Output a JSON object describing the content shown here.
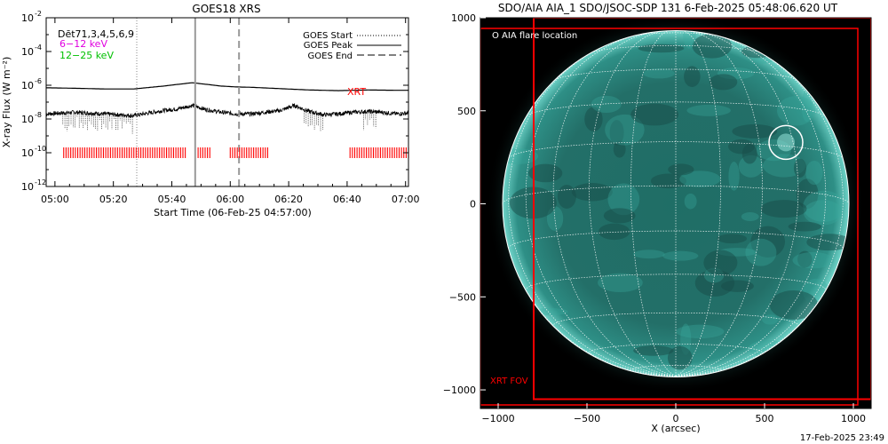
{
  "footer_timestamp": "17-Feb-2025 23:49",
  "colors": {
    "xrt": "#ff0000",
    "band_6_12": "#e000e0",
    "band_12_25": "#00c000",
    "sun_teal": "#2fa89c",
    "grid": "#ffffff"
  },
  "chart_data": [
    {
      "type": "line",
      "title": "GOES18 XRS",
      "xlabel": "Start Time (06-Feb-25 04:57:00)",
      "ylabel": "X-ray Flux (W m⁻²)",
      "ylim_exponent": [
        -12,
        -2
      ],
      "y_log_scale": true,
      "y_ticks": [
        {
          "base": "10",
          "exp": "-2",
          "e": -2
        },
        {
          "base": "10",
          "exp": "-4",
          "e": -4
        },
        {
          "base": "10",
          "exp": "-6",
          "e": -6
        },
        {
          "base": "10",
          "exp": "-8",
          "e": -8
        },
        {
          "base": "10",
          "exp": "-10",
          "e": -10
        },
        {
          "base": "10",
          "exp": "-12",
          "e": -12
        }
      ],
      "x_ticks": [
        "05:00",
        "05:20",
        "05:40",
        "06:00",
        "06:20",
        "06:40",
        "07:00"
      ],
      "x_tick_minutes": [
        3,
        23,
        43,
        63,
        83,
        103,
        123
      ],
      "xlim_minutes": [
        0,
        124
      ],
      "top_left_labels": [
        {
          "text": "Dēt71,3,4,5,6,9",
          "color": "#000000"
        },
        {
          "text": "6−12 keV",
          "color": "#e000e0"
        },
        {
          "text": "12−25 keV",
          "color": "#00c000"
        }
      ],
      "legend": [
        {
          "label": "GOES Start",
          "style": "dotted"
        },
        {
          "label": "GOES Peak",
          "style": "solid"
        },
        {
          "label": "GOES End",
          "style": "dashed"
        }
      ],
      "legend_position": "top-right",
      "xrt_label": "XRT",
      "events_minutes": {
        "start": 31,
        "peak": 51,
        "end": 66
      },
      "series": [
        {
          "name": "long",
          "x": [
            0,
            10,
            20,
            30,
            40,
            45,
            50,
            55,
            60,
            65,
            70,
            80,
            90,
            100,
            110,
            120,
            124
          ],
          "log_flux": [
            -6.15,
            -6.18,
            -6.22,
            -6.22,
            -6.05,
            -5.95,
            -5.85,
            -5.95,
            -6.05,
            -6.1,
            -6.12,
            -6.2,
            -6.28,
            -6.32,
            -6.28,
            -6.3,
            -6.3
          ]
        },
        {
          "name": "short",
          "x": [
            0,
            10,
            20,
            30,
            40,
            45,
            50,
            55,
            60,
            65,
            70,
            75,
            80,
            85,
            90,
            95,
            100,
            105,
            110,
            115,
            120,
            124
          ],
          "log_flux": [
            -7.7,
            -7.6,
            -7.7,
            -7.8,
            -7.5,
            -7.4,
            -7.2,
            -7.45,
            -7.6,
            -7.7,
            -7.7,
            -7.6,
            -7.5,
            -7.2,
            -7.55,
            -7.75,
            -7.7,
            -7.6,
            -7.55,
            -7.6,
            -7.7,
            -7.65
          ]
        }
      ],
      "xrt_coverage_minutes": [
        [
          6,
          48
        ],
        [
          52,
          56
        ],
        [
          63,
          76
        ],
        [
          104,
          124
        ]
      ]
    },
    {
      "type": "image",
      "title": "SDO/AIA AIA_1 SDO/JSOC-SDP 131  6-Feb-2025 05:48:06.620 UT",
      "xlabel": "X (arcsec)",
      "x_ticks": [
        "−1000",
        "−500",
        "0",
        "500",
        "1000"
      ],
      "y_ticks": [
        "1000",
        "500",
        "0",
        "−500",
        "−1000"
      ],
      "tick_values": [
        -1000,
        -500,
        0,
        500,
        1000
      ],
      "xlim": [
        -1100,
        1100
      ],
      "ylim": [
        -1100,
        1000
      ],
      "solar_radius_arcsec": 975,
      "flare_location_label": "O AIA flare location",
      "flare_location_arcsec": [
        620,
        330
      ],
      "xrt_fov_label": "XRT FOV",
      "xrt_fov_arcsec": [
        [
          -800,
          -1050
        ],
        [
          1100,
          1000
        ]
      ]
    }
  ]
}
